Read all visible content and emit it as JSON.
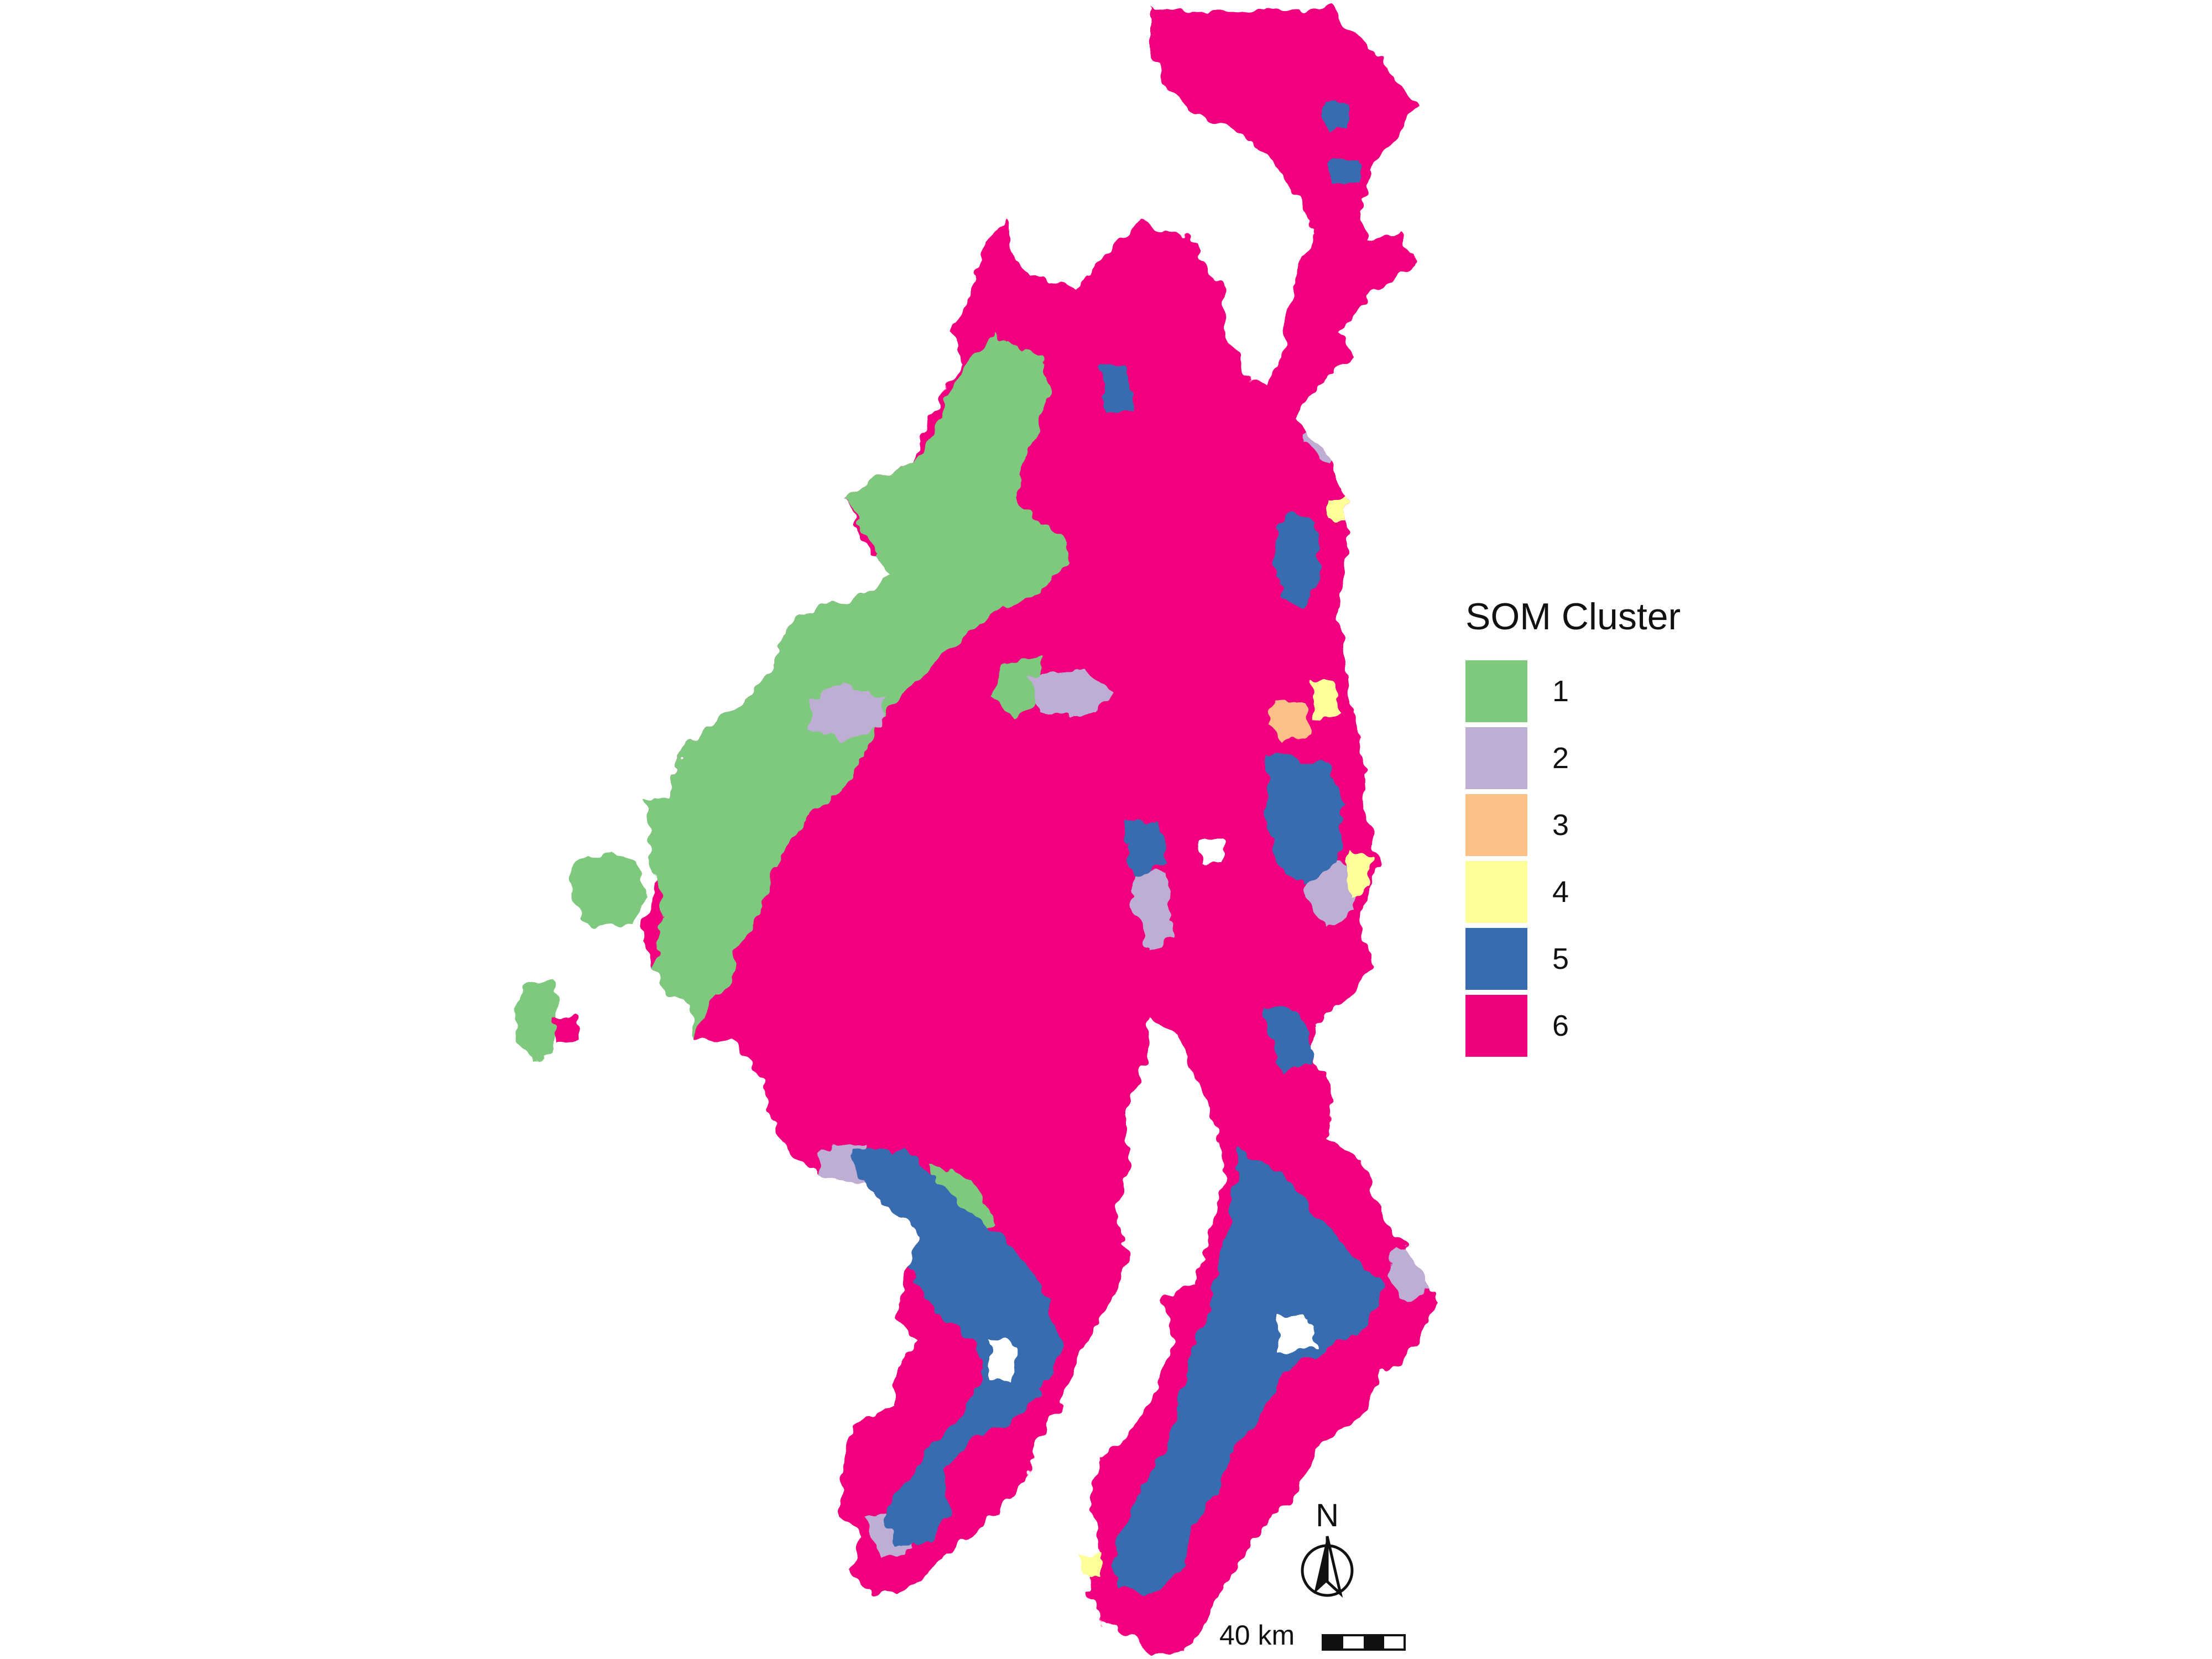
{
  "legend": {
    "title": "SOM Cluster",
    "items": [
      {
        "label": "1",
        "color": "#7FC97F"
      },
      {
        "label": "2",
        "color": "#BEAED4"
      },
      {
        "label": "3",
        "color": "#FDC086"
      },
      {
        "label": "4",
        "color": "#FFFF99"
      },
      {
        "label": "5",
        "color": "#386CB0"
      },
      {
        "label": "6",
        "color": "#F0027F"
      }
    ]
  },
  "scale_bar": {
    "label": "40 km"
  },
  "north_arrow": {
    "label": "N"
  },
  "map": {
    "background_cluster": "6"
  }
}
